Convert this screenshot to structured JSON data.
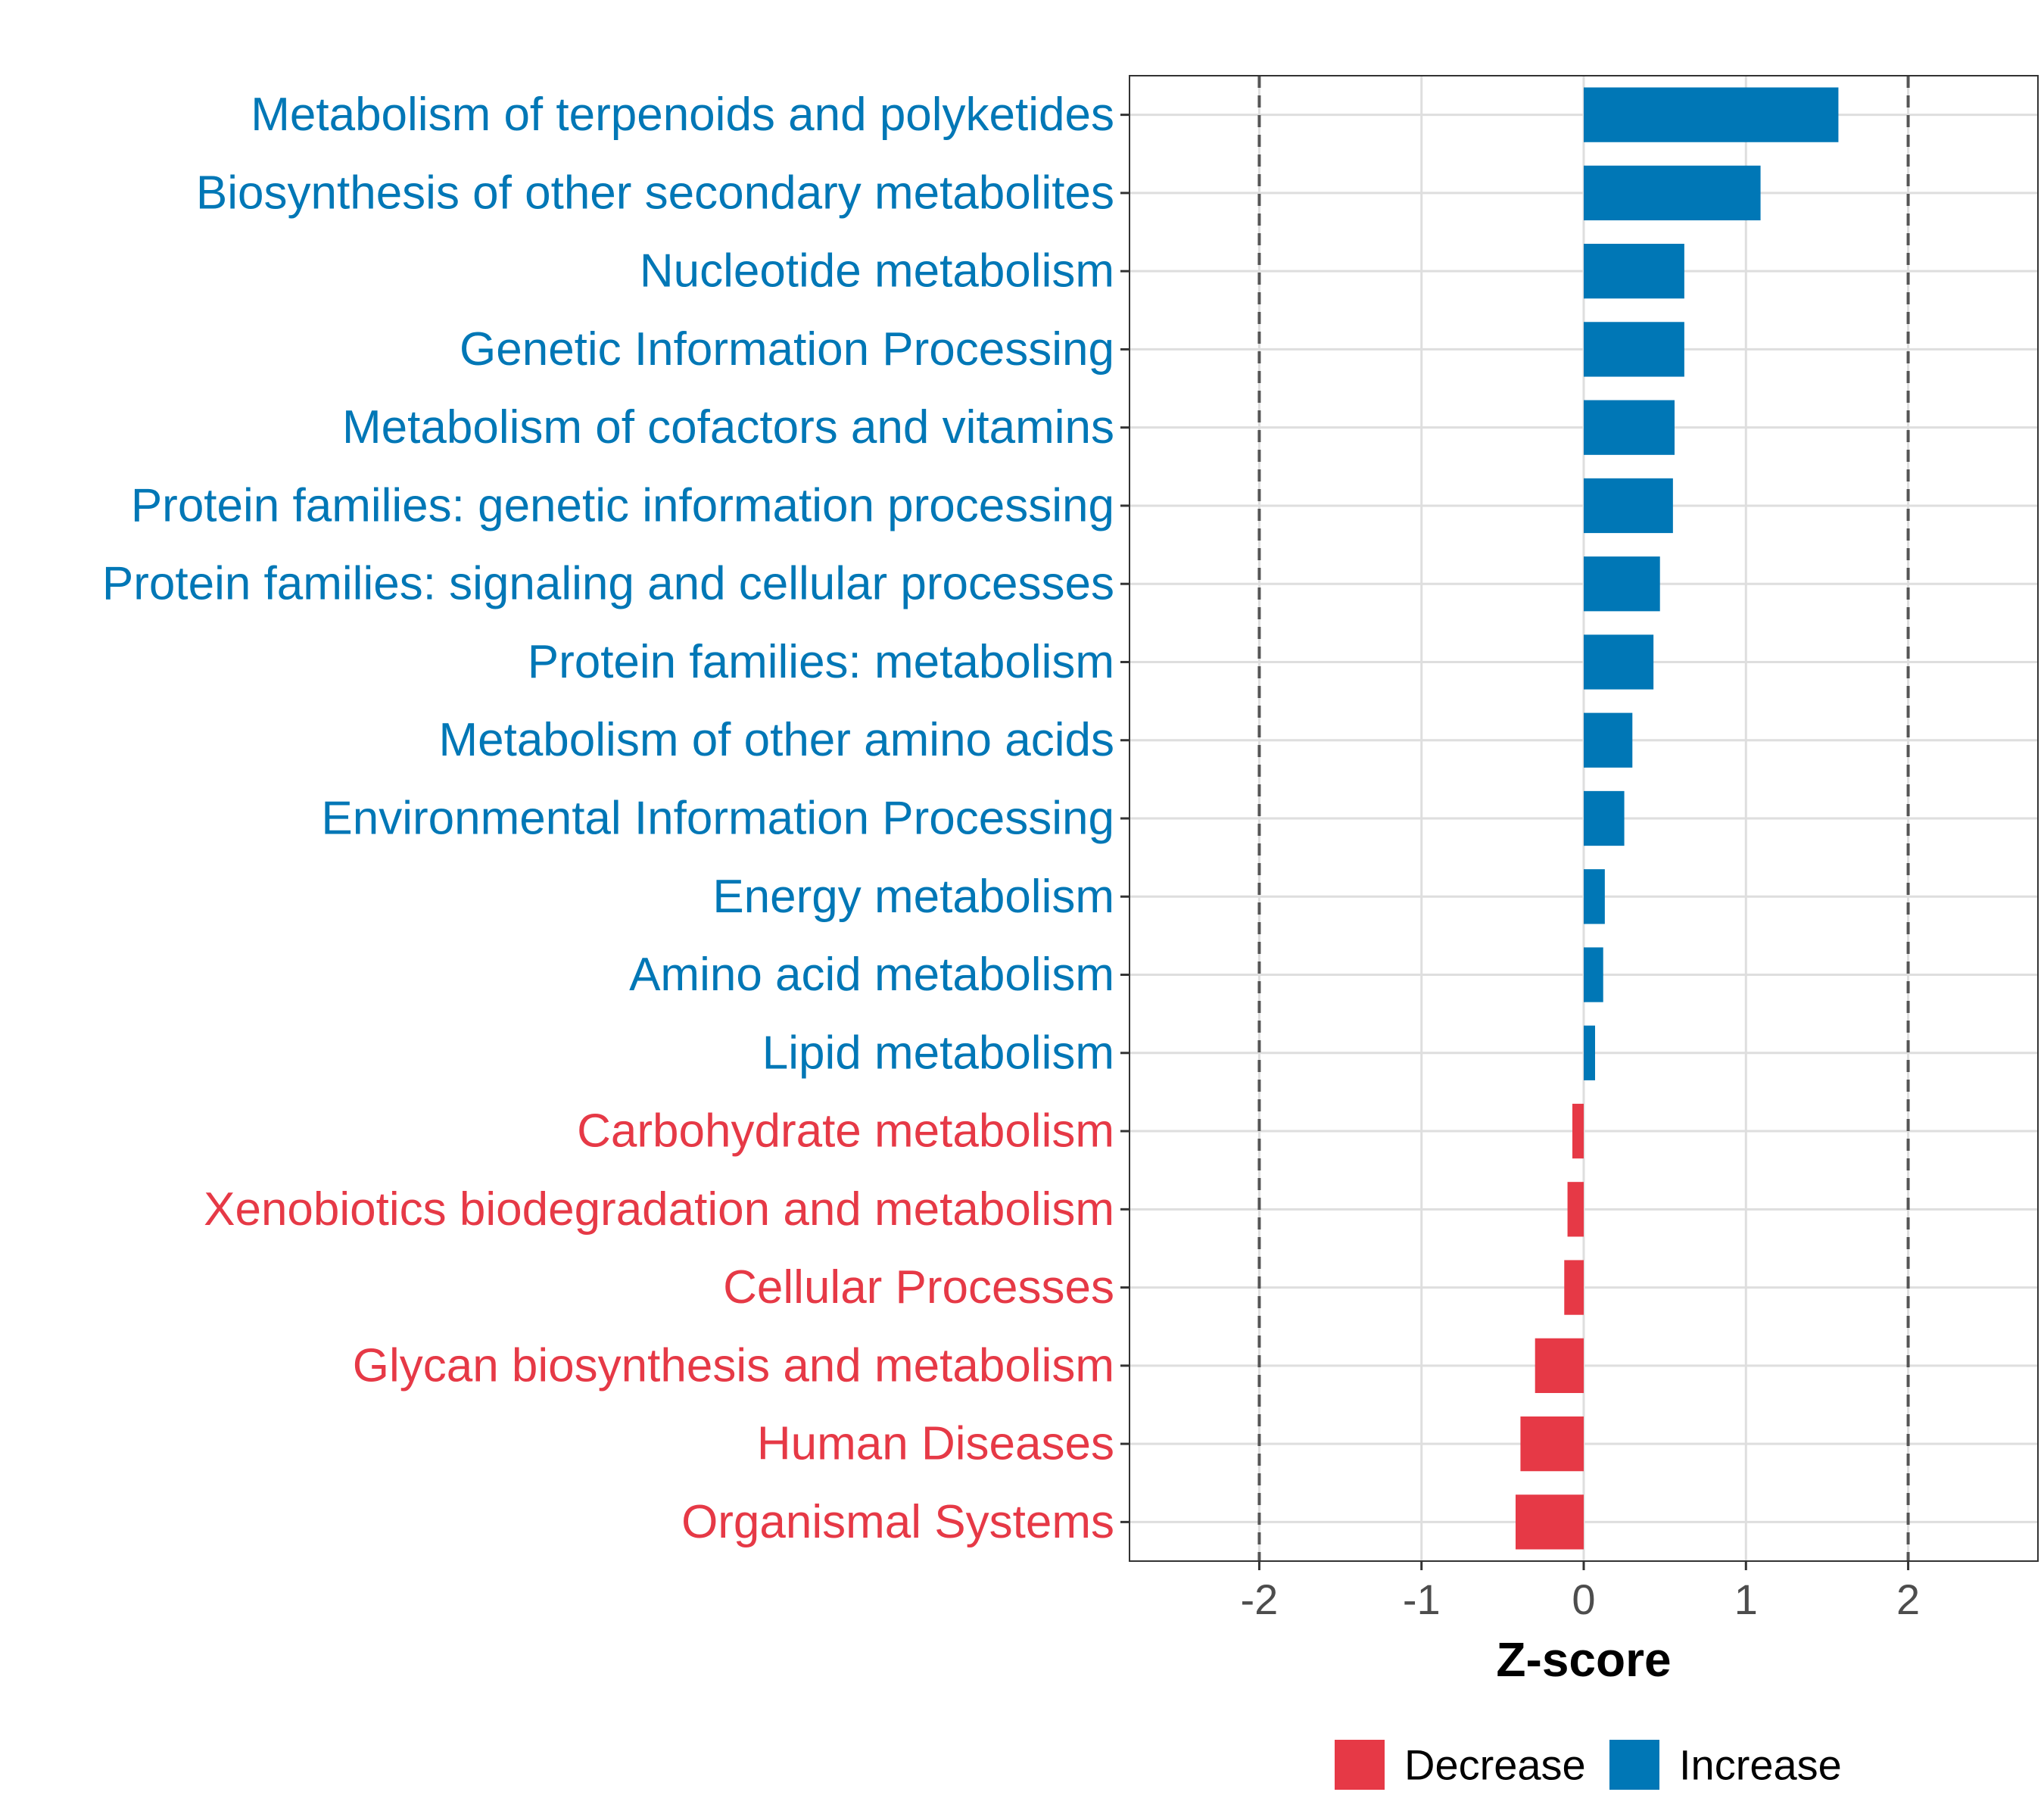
{
  "chart_data": {
    "type": "bar",
    "orientation": "horizontal",
    "xlabel": "Z-score",
    "ylabel": "",
    "xlim": [
      -2.8,
      2.8
    ],
    "xticks": [
      -2,
      -1,
      0,
      1,
      2
    ],
    "xtick_labels": [
      "-2",
      "-1",
      "0",
      "1",
      "2"
    ],
    "reference_lines": [
      -2,
      2
    ],
    "grid": true,
    "legend_position": "bottom",
    "categories": [
      "Metabolism of terpenoids and polyketides",
      "Biosynthesis of other secondary metabolites",
      "Nucleotide metabolism",
      "Genetic Information Processing",
      "Metabolism of cofactors and vitamins",
      "Protein families: genetic information processing",
      "Protein families: signaling and cellular processes",
      "Protein families: metabolism",
      "Metabolism of other amino acids",
      "Environmental Information Processing",
      "Energy metabolism",
      "Amino acid metabolism",
      "Lipid metabolism",
      "Carbohydrate metabolism",
      "Xenobiotics biodegradation and metabolism",
      "Cellular Processes",
      "Glycan biosynthesis and metabolism",
      "Human Diseases",
      "Organismal Systems"
    ],
    "values": [
      1.57,
      1.09,
      0.62,
      0.62,
      0.56,
      0.55,
      0.47,
      0.43,
      0.3,
      0.25,
      0.13,
      0.12,
      0.07,
      -0.07,
      -0.1,
      -0.12,
      -0.3,
      -0.39,
      -0.42
    ],
    "groups": [
      "Increase",
      "Increase",
      "Increase",
      "Increase",
      "Increase",
      "Increase",
      "Increase",
      "Increase",
      "Increase",
      "Increase",
      "Increase",
      "Increase",
      "Increase",
      "Decrease",
      "Decrease",
      "Decrease",
      "Decrease",
      "Decrease",
      "Decrease"
    ],
    "legend": [
      {
        "name": "Decrease",
        "color": "#E63946"
      },
      {
        "name": "Increase",
        "color": "#0077B6"
      }
    ]
  }
}
